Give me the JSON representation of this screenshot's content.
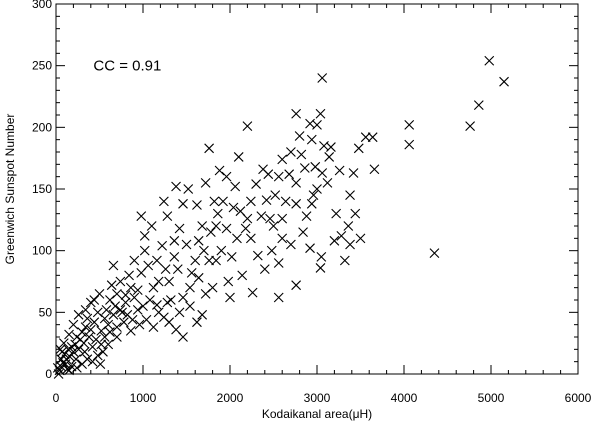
{
  "chart_data": {
    "type": "scatter",
    "title": "",
    "xlabel": "Kodaikanal area(μH)",
    "ylabel": "Greenwich Sunspot Number",
    "xlim": [
      0,
      6000
    ],
    "ylim": [
      0,
      300
    ],
    "xticks": [
      0,
      1000,
      2000,
      3000,
      4000,
      5000,
      6000
    ],
    "yticks": [
      0,
      50,
      100,
      150,
      200,
      250,
      300
    ],
    "x_minor_step": 200,
    "y_minor_step": 10,
    "grid": false,
    "marker": "x",
    "annotation": "CC = 0.91",
    "points": [
      [
        3060,
        240
      ],
      [
        4980,
        254
      ],
      [
        5150,
        237
      ],
      [
        4860,
        218
      ],
      [
        4760,
        201
      ],
      [
        4350,
        98
      ],
      [
        4060,
        202
      ],
      [
        4060,
        186
      ],
      [
        3640,
        192
      ],
      [
        3560,
        192
      ],
      [
        3480,
        183
      ],
      [
        3660,
        166
      ],
      [
        3420,
        163
      ],
      [
        3380,
        145
      ],
      [
        3440,
        130
      ],
      [
        3380,
        105
      ],
      [
        3280,
        112
      ],
      [
        3200,
        108
      ],
      [
        3040,
        211
      ],
      [
        2920,
        203
      ],
      [
        3000,
        202
      ],
      [
        3080,
        185
      ],
      [
        3160,
        184
      ],
      [
        3060,
        163
      ],
      [
        2980,
        168
      ],
      [
        3000,
        150
      ],
      [
        2960,
        145
      ],
      [
        2940,
        138
      ],
      [
        3050,
        95
      ],
      [
        3040,
        86
      ],
      [
        2760,
        211
      ],
      [
        2800,
        193
      ],
      [
        2700,
        180
      ],
      [
        2600,
        174
      ],
      [
        2860,
        167
      ],
      [
        2760,
        155
      ],
      [
        2880,
        128
      ],
      [
        2760,
        138
      ],
      [
        2760,
        72
      ],
      [
        2560,
        160
      ],
      [
        2600,
        126
      ],
      [
        2440,
        162
      ],
      [
        2380,
        166
      ],
      [
        2420,
        141
      ],
      [
        2460,
        126
      ],
      [
        2500,
        120
      ],
      [
        2560,
        62
      ],
      [
        2200,
        201
      ],
      [
        2100,
        176
      ],
      [
        2240,
        140
      ],
      [
        2240,
        110
      ],
      [
        2200,
        126
      ],
      [
        2320,
        96
      ],
      [
        2060,
        152
      ],
      [
        1960,
        160
      ],
      [
        1860,
        130
      ],
      [
        1960,
        118
      ],
      [
        2080,
        110
      ],
      [
        1840,
        92
      ],
      [
        2000,
        62
      ],
      [
        1760,
        183
      ],
      [
        1720,
        155
      ],
      [
        1620,
        137
      ],
      [
        1680,
        120
      ],
      [
        1640,
        108
      ],
      [
        1600,
        92
      ],
      [
        1640,
        78
      ],
      [
        1720,
        65
      ],
      [
        1560,
        82
      ],
      [
        1520,
        150
      ],
      [
        1460,
        138
      ],
      [
        1380,
        152
      ],
      [
        1420,
        118
      ],
      [
        1500,
        105
      ],
      [
        1360,
        108
      ],
      [
        1400,
        85
      ],
      [
        1300,
        75
      ],
      [
        1320,
        60
      ],
      [
        1220,
        104
      ],
      [
        1160,
        92
      ],
      [
        1260,
        85
      ],
      [
        1180,
        75
      ],
      [
        1120,
        70
      ],
      [
        1060,
        88
      ],
      [
        1020,
        100
      ],
      [
        980,
        82
      ],
      [
        940,
        68
      ],
      [
        1080,
        60
      ],
      [
        1000,
        55
      ],
      [
        1180,
        50
      ],
      [
        900,
        92
      ],
      [
        840,
        80
      ],
      [
        860,
        70
      ],
      [
        800,
        64
      ],
      [
        740,
        75
      ],
      [
        700,
        65
      ],
      [
        660,
        88
      ],
      [
        640,
        72
      ],
      [
        620,
        60
      ],
      [
        680,
        55
      ],
      [
        760,
        50
      ],
      [
        580,
        52
      ],
      [
        560,
        45
      ],
      [
        600,
        40
      ],
      [
        520,
        35
      ],
      [
        480,
        50
      ],
      [
        440,
        42
      ],
      [
        400,
        36
      ],
      [
        460,
        28
      ],
      [
        380,
        30
      ],
      [
        340,
        38
      ],
      [
        300,
        34
      ],
      [
        320,
        25
      ],
      [
        280,
        28
      ],
      [
        260,
        20
      ],
      [
        240,
        30
      ],
      [
        220,
        24
      ],
      [
        200,
        18
      ],
      [
        180,
        22
      ],
      [
        160,
        14
      ],
      [
        140,
        20
      ],
      [
        120,
        12
      ],
      [
        100,
        16
      ],
      [
        80,
        9
      ],
      [
        60,
        6
      ],
      [
        40,
        3
      ],
      [
        30,
        0
      ],
      [
        20,
        5
      ],
      [
        110,
        8
      ],
      [
        150,
        3
      ],
      [
        70,
        18
      ],
      [
        90,
        25
      ],
      [
        200,
        40
      ],
      [
        260,
        48
      ],
      [
        340,
        52
      ],
      [
        400,
        58
      ],
      [
        440,
        60
      ],
      [
        500,
        65
      ],
      [
        360,
        45
      ],
      [
        420,
        22
      ],
      [
        520,
        24
      ],
      [
        560,
        30
      ],
      [
        620,
        34
      ],
      [
        700,
        38
      ],
      [
        780,
        42
      ],
      [
        820,
        48
      ],
      [
        880,
        44
      ],
      [
        960,
        40
      ],
      [
        1040,
        44
      ],
      [
        1120,
        38
      ],
      [
        1240,
        46
      ],
      [
        1300,
        42
      ],
      [
        1380,
        36
      ],
      [
        1460,
        30
      ],
      [
        1540,
        55
      ],
      [
        1680,
        48
      ],
      [
        1700,
        100
      ],
      [
        1780,
        115
      ],
      [
        1820,
        140
      ],
      [
        1880,
        165
      ],
      [
        1920,
        140
      ],
      [
        2020,
        95
      ],
      [
        2120,
        132
      ],
      [
        2300,
        154
      ],
      [
        2480,
        100
      ],
      [
        2640,
        140
      ],
      [
        2700,
        105
      ],
      [
        2840,
        115
      ],
      [
        2920,
        102
      ],
      [
        3120,
        155
      ],
      [
        3220,
        130
      ],
      [
        3320,
        92
      ],
      [
        2560,
        90
      ],
      [
        2400,
        85
      ],
      [
        2260,
        66
      ],
      [
        2140,
        80
      ],
      [
        1980,
        75
      ],
      [
        1900,
        100
      ],
      [
        1800,
        70
      ],
      [
        1540,
        70
      ],
      [
        1460,
        62
      ],
      [
        1360,
        95
      ],
      [
        1280,
        128
      ],
      [
        1240,
        140
      ],
      [
        1100,
        120
      ],
      [
        1020,
        112
      ],
      [
        980,
        128
      ],
      [
        900,
        62
      ],
      [
        800,
        58
      ],
      [
        740,
        52
      ],
      [
        660,
        48
      ],
      [
        600,
        24
      ],
      [
        540,
        18
      ],
      [
        480,
        15
      ],
      [
        420,
        10
      ],
      [
        360,
        12
      ],
      [
        300,
        8
      ],
      [
        240,
        5
      ],
      [
        180,
        6
      ],
      [
        130,
        4
      ],
      [
        60,
        12
      ],
      [
        50,
        20
      ],
      [
        150,
        32
      ],
      [
        230,
        12
      ],
      [
        330,
        18
      ],
      [
        510,
        8
      ],
      [
        700,
        30
      ],
      [
        860,
        35
      ],
      [
        940,
        52
      ],
      [
        1160,
        56
      ],
      [
        1280,
        58
      ],
      [
        1420,
        50
      ],
      [
        1620,
        42
      ],
      [
        1760,
        92
      ],
      [
        2040,
        135
      ],
      [
        2180,
        118
      ],
      [
        2360,
        128
      ],
      [
        2520,
        145
      ],
      [
        2680,
        162
      ],
      [
        2820,
        178
      ],
      [
        2940,
        190
      ],
      [
        3140,
        176
      ],
      [
        3260,
        165
      ],
      [
        3360,
        120
      ],
      [
        3500,
        110
      ],
      [
        2600,
        110
      ],
      [
        1840,
        120
      ]
    ]
  }
}
